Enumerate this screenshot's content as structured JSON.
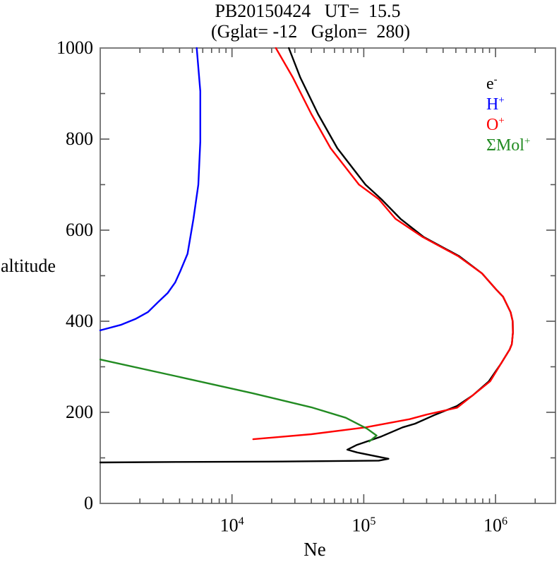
{
  "title": {
    "line1": "PB20150424   UT=  15.5",
    "line2": "(Gglat= -12   Gglon=  280)"
  },
  "axes": {
    "y_label": "altitude",
    "x_label": "Ne",
    "y_tick_values": [
      1000,
      800,
      600,
      400,
      200,
      0
    ],
    "x_tick_base": "10",
    "x_tick_exponents": [
      "4",
      "5",
      "6"
    ]
  },
  "legend": [
    {
      "base": "e",
      "sup": "-",
      "color": "#000000"
    },
    {
      "base": "H",
      "sup": "+",
      "color": "#0000ff"
    },
    {
      "base": "O",
      "sup": "+",
      "color": "#ff0000"
    },
    {
      "base": "ΣMol",
      "sup": "+",
      "color": "#228b22"
    }
  ],
  "frame_color": "#7d7d7d",
  "tick_color": "#565656",
  "chart_data": {
    "type": "line",
    "title": "PB20150424 UT= 15.5 (Gglat= -12 Gglon= 280)",
    "xlabel": "Ne",
    "ylabel": "altitude",
    "x_scale": "log",
    "xlim": [
      1000,
      2850000
    ],
    "ylim": [
      0,
      1000
    ],
    "grid": false,
    "legend_position": "upper right",
    "series": [
      {
        "name": "e-",
        "color": "#000000",
        "points": [
          [
            27000,
            1000
          ],
          [
            33000,
            935
          ],
          [
            45000,
            855
          ],
          [
            63000,
            780
          ],
          [
            103000,
            700
          ],
          [
            136000,
            668
          ],
          [
            190000,
            625
          ],
          [
            285000,
            585
          ],
          [
            530000,
            543
          ],
          [
            790000,
            505
          ],
          [
            1010000,
            470
          ],
          [
            1140000,
            454
          ],
          [
            1300000,
            420
          ],
          [
            1350000,
            400
          ],
          [
            1355000,
            375
          ],
          [
            1330000,
            350
          ],
          [
            1280000,
            338
          ],
          [
            1100000,
            307
          ],
          [
            890000,
            268
          ],
          [
            670000,
            237
          ],
          [
            510000,
            214
          ],
          [
            350000,
            195
          ],
          [
            245000,
            175
          ],
          [
            197000,
            167
          ],
          [
            136000,
            147
          ],
          [
            88000,
            128
          ],
          [
            75000,
            118
          ],
          [
            89000,
            112
          ],
          [
            154000,
            98
          ],
          [
            130000,
            94
          ],
          [
            24000,
            92
          ],
          [
            3800,
            91
          ],
          [
            1000,
            90
          ]
        ]
      },
      {
        "name": "H+",
        "color": "#0000ff",
        "points": [
          [
            5400,
            1000
          ],
          [
            5750,
            905
          ],
          [
            5750,
            795
          ],
          [
            5550,
            700
          ],
          [
            5100,
            625
          ],
          [
            4600,
            548
          ],
          [
            4050,
            510
          ],
          [
            3700,
            485
          ],
          [
            3250,
            462
          ],
          [
            2750,
            442
          ],
          [
            2300,
            420
          ],
          [
            1850,
            405
          ],
          [
            1430,
            392
          ],
          [
            1000,
            380
          ]
        ]
      },
      {
        "name": "O+",
        "color": "#ff0000",
        "points": [
          [
            21500,
            1000
          ],
          [
            29000,
            935
          ],
          [
            40000,
            855
          ],
          [
            56000,
            780
          ],
          [
            92000,
            700
          ],
          [
            130000,
            668
          ],
          [
            174000,
            625
          ],
          [
            280000,
            585
          ],
          [
            520000,
            543
          ],
          [
            790000,
            505
          ],
          [
            1010000,
            470
          ],
          [
            1140000,
            454
          ],
          [
            1300000,
            420
          ],
          [
            1350000,
            400
          ],
          [
            1355000,
            375
          ],
          [
            1330000,
            350
          ],
          [
            1280000,
            338
          ],
          [
            1100000,
            307
          ],
          [
            910000,
            268
          ],
          [
            670000,
            237
          ],
          [
            510000,
            210
          ],
          [
            300000,
            195
          ],
          [
            223000,
            185
          ],
          [
            103000,
            167
          ],
          [
            40000,
            152
          ],
          [
            14500,
            141
          ]
        ]
      },
      {
        "name": "ΣMol+",
        "color": "#228b22",
        "points": [
          [
            1000,
            316
          ],
          [
            3800,
            279
          ],
          [
            14300,
            242
          ],
          [
            40000,
            211
          ],
          [
            73000,
            188
          ],
          [
            106000,
            164
          ],
          [
            125000,
            149
          ],
          [
            110000,
            136
          ]
        ]
      }
    ]
  }
}
